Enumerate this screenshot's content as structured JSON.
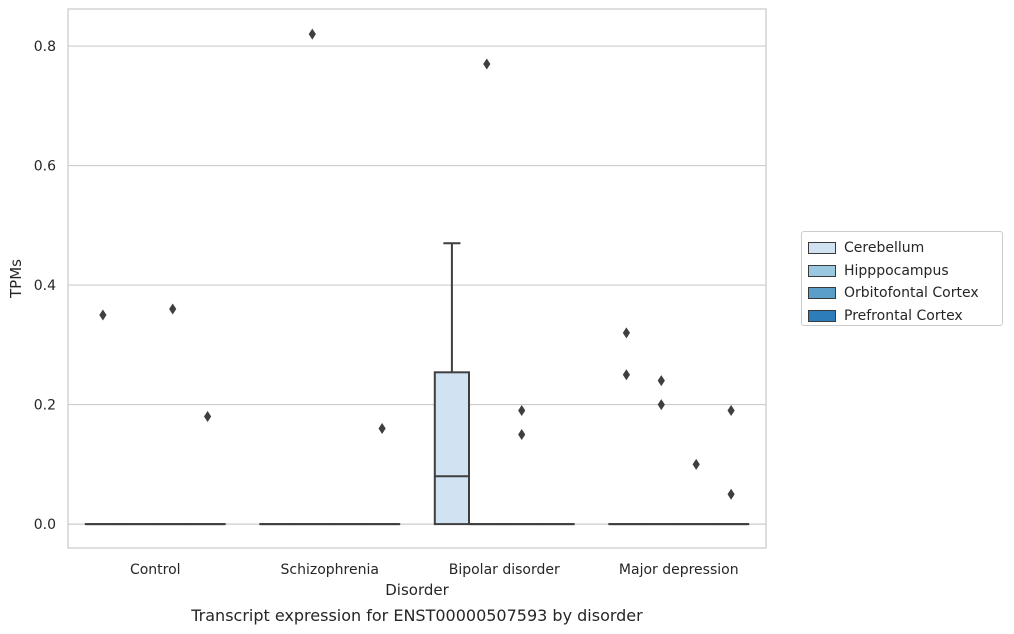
{
  "chart_data": {
    "type": "box",
    "xlabel": "Disorder",
    "ylabel": "TPMs",
    "caption": "Transcript expression for ENST00000507593 by disorder",
    "ylim": [
      -0.04,
      0.862
    ],
    "yticks": [
      0.0,
      0.2,
      0.4,
      0.6,
      0.8
    ],
    "ytick_labels": [
      "0.0",
      "0.2",
      "0.4",
      "0.6",
      "0.8"
    ],
    "grid": "horizontal",
    "legend_position": "right",
    "categories": [
      "Control",
      "Schizophrenia",
      "Bipolar disorder",
      "Major depression"
    ],
    "series": [
      {
        "name": "Cerebellum",
        "color": "#d1e2f2",
        "boxes": [
          {
            "q1": 0.0,
            "median": 0.0,
            "q3": 0.0,
            "whisker_low": 0.0,
            "whisker_high": 0.0,
            "outliers": [
              0.35
            ]
          },
          {
            "q1": 0.0,
            "median": 0.0,
            "q3": 0.0,
            "whisker_low": 0.0,
            "whisker_high": 0.0,
            "outliers": []
          },
          {
            "q1": 0.0,
            "median": 0.08,
            "q3": 0.254,
            "whisker_low": 0.0,
            "whisker_high": 0.47,
            "outliers": []
          },
          {
            "q1": 0.0,
            "median": 0.0,
            "q3": 0.0,
            "whisker_low": 0.0,
            "whisker_high": 0.0,
            "outliers": [
              0.32,
              0.25
            ]
          }
        ]
      },
      {
        "name": "Hipppocampus",
        "color": "#9ac8e0",
        "boxes": [
          {
            "q1": 0.0,
            "median": 0.0,
            "q3": 0.0,
            "whisker_low": 0.0,
            "whisker_high": 0.0,
            "outliers": []
          },
          {
            "q1": 0.0,
            "median": 0.0,
            "q3": 0.0,
            "whisker_low": 0.0,
            "whisker_high": 0.0,
            "outliers": [
              0.82
            ]
          },
          {
            "q1": 0.0,
            "median": 0.0,
            "q3": 0.0,
            "whisker_low": 0.0,
            "whisker_high": 0.0,
            "outliers": [
              0.77
            ]
          },
          {
            "q1": 0.0,
            "median": 0.0,
            "q3": 0.0,
            "whisker_low": 0.0,
            "whisker_high": 0.0,
            "outliers": [
              0.24,
              0.2
            ]
          }
        ]
      },
      {
        "name": "Orbitofontal Cortex",
        "color": "#5a9ec9",
        "boxes": [
          {
            "q1": 0.0,
            "median": 0.0,
            "q3": 0.0,
            "whisker_low": 0.0,
            "whisker_high": 0.0,
            "outliers": [
              0.36
            ]
          },
          {
            "q1": 0.0,
            "median": 0.0,
            "q3": 0.0,
            "whisker_low": 0.0,
            "whisker_high": 0.0,
            "outliers": []
          },
          {
            "q1": 0.0,
            "median": 0.0,
            "q3": 0.0,
            "whisker_low": 0.0,
            "whisker_high": 0.0,
            "outliers": [
              0.19,
              0.15
            ]
          },
          {
            "q1": 0.0,
            "median": 0.0,
            "q3": 0.0,
            "whisker_low": 0.0,
            "whisker_high": 0.0,
            "outliers": [
              0.1
            ]
          }
        ]
      },
      {
        "name": "Prefrontal Cortex",
        "color": "#2d7dbb",
        "boxes": [
          {
            "q1": 0.0,
            "median": 0.0,
            "q3": 0.0,
            "whisker_low": 0.0,
            "whisker_high": 0.0,
            "outliers": [
              0.18
            ]
          },
          {
            "q1": 0.0,
            "median": 0.0,
            "q3": 0.0,
            "whisker_low": 0.0,
            "whisker_high": 0.0,
            "outliers": [
              0.16
            ]
          },
          {
            "q1": 0.0,
            "median": 0.0,
            "q3": 0.0,
            "whisker_low": 0.0,
            "whisker_high": 0.0,
            "outliers": []
          },
          {
            "q1": 0.0,
            "median": 0.0,
            "q3": 0.0,
            "whisker_low": 0.0,
            "whisker_high": 0.0,
            "outliers": [
              0.19,
              0.05
            ]
          }
        ]
      }
    ]
  }
}
